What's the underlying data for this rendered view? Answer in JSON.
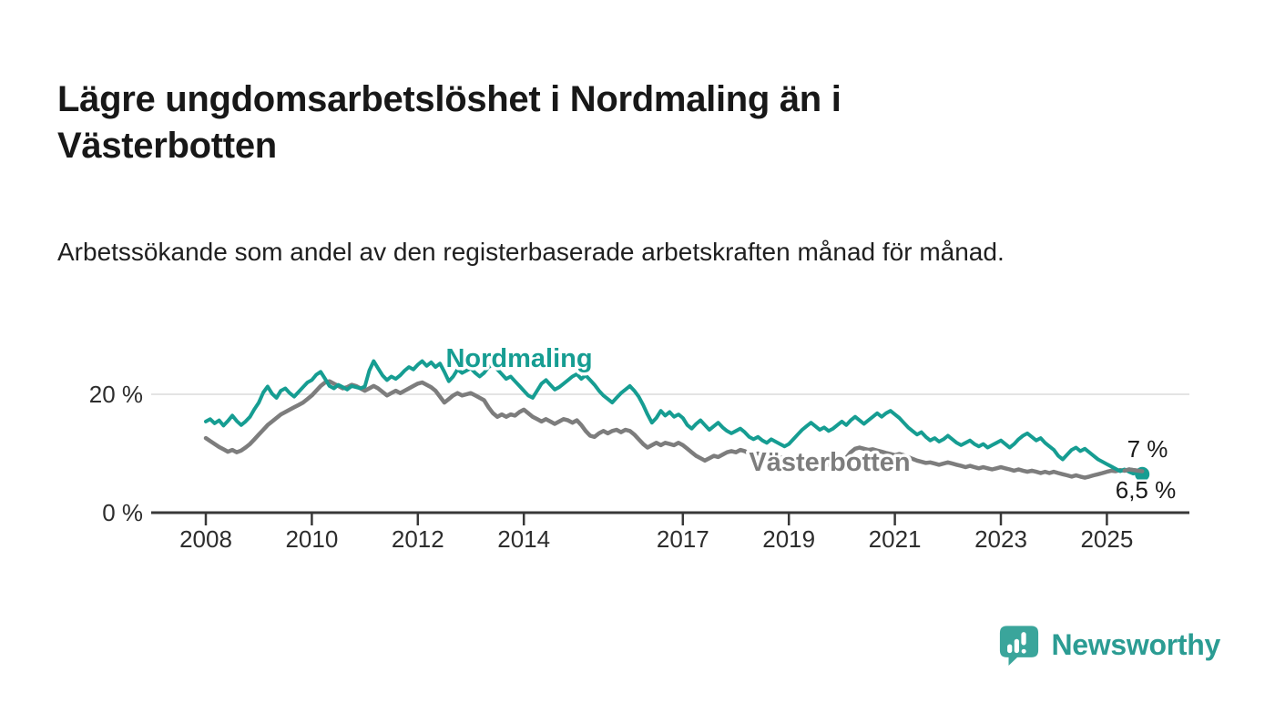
{
  "header": {
    "title": "Lägre ungdomsarbetslöshet i Nordmaling än i Västerbotten",
    "subtitle": "Arbetssökande som andel av den registerbaserade arbetskraften månad för månad."
  },
  "footer": {
    "brand": "Newsworthy",
    "logo_icon": "bar-chart-speech-bubble-icon",
    "brand_color": "#2b9c93"
  },
  "colors": {
    "nordmaling": "#169d92",
    "vasterbotten": "#7d7d7d",
    "axis": "#383838",
    "gridline": "#dcdcdc",
    "tick_text": "#2d2d2d",
    "end_label_text": "#1a1a1a"
  },
  "chart_data": {
    "type": "line",
    "unit": "%",
    "x_start": "2008-01",
    "x_end": "2025-09",
    "points_per_month": 1,
    "grid": "horizontal-20-only",
    "y_ticks": [
      {
        "value": 0,
        "label": "0 %"
      },
      {
        "value": 20,
        "label": "20 %"
      }
    ],
    "x_ticks": [
      {
        "year": 2008,
        "label": "2008"
      },
      {
        "year": 2010,
        "label": "2010"
      },
      {
        "year": 2012,
        "label": "2012"
      },
      {
        "year": 2014,
        "label": "2014"
      },
      {
        "year": 2017,
        "label": "2017"
      },
      {
        "year": 2019,
        "label": "2019"
      },
      {
        "year": 2021,
        "label": "2021"
      },
      {
        "year": 2023,
        "label": "2023"
      },
      {
        "year": 2025,
        "label": "2025"
      }
    ],
    "series": [
      {
        "name": "Nordmaling",
        "color": "#169d92",
        "end_label": "6,5 %",
        "end_value": 6.5,
        "marker_end": true,
        "values": [
          15.4,
          15.8,
          15.1,
          15.6,
          14.7,
          15.5,
          16.4,
          15.5,
          14.8,
          15.4,
          16.2,
          17.5,
          18.6,
          20.3,
          21.3,
          20.1,
          19.4,
          20.6,
          21.0,
          20.2,
          19.6,
          20.4,
          21.2,
          22.0,
          22.4,
          23.3,
          23.8,
          22.6,
          21.4,
          21.0,
          21.6,
          21.2,
          20.8,
          21.4,
          21.2,
          21.0,
          21.3,
          24.0,
          25.6,
          24.4,
          23.2,
          22.4,
          23.0,
          22.6,
          23.2,
          24.0,
          24.6,
          24.2,
          25.0,
          25.6,
          24.8,
          25.4,
          24.6,
          25.2,
          23.8,
          22.2,
          23.0,
          24.2,
          23.6,
          24.0,
          24.4,
          23.6,
          23.0,
          23.6,
          24.6,
          25.0,
          24.2,
          23.4,
          22.6,
          23.0,
          22.2,
          21.4,
          20.6,
          19.8,
          19.4,
          20.6,
          21.8,
          22.4,
          21.6,
          20.8,
          21.2,
          21.8,
          22.4,
          23.0,
          23.4,
          22.6,
          23.2,
          22.4,
          21.6,
          20.6,
          19.8,
          19.2,
          18.6,
          19.4,
          20.2,
          20.8,
          21.4,
          20.6,
          19.6,
          18.2,
          16.6,
          15.2,
          16.0,
          17.2,
          16.4,
          17.0,
          16.2,
          16.6,
          16.0,
          14.8,
          14.2,
          15.0,
          15.6,
          14.8,
          14.0,
          14.6,
          15.2,
          14.4,
          13.8,
          13.4,
          13.8,
          14.2,
          13.6,
          12.8,
          12.4,
          12.8,
          12.2,
          11.8,
          12.4,
          12.0,
          11.6,
          11.2,
          11.6,
          12.4,
          13.2,
          14.0,
          14.6,
          15.2,
          14.6,
          14.0,
          14.4,
          13.8,
          14.2,
          14.8,
          15.4,
          14.8,
          15.6,
          16.2,
          15.6,
          15.0,
          15.6,
          16.2,
          16.8,
          16.2,
          16.8,
          17.2,
          16.6,
          16.0,
          15.2,
          14.4,
          13.8,
          13.2,
          13.6,
          12.8,
          12.2,
          12.6,
          12.0,
          12.4,
          13.0,
          12.4,
          11.8,
          11.4,
          11.8,
          12.2,
          11.6,
          11.2,
          11.6,
          11.0,
          11.4,
          11.8,
          12.2,
          11.6,
          11.0,
          11.6,
          12.4,
          13.0,
          13.4,
          12.8,
          12.2,
          12.6,
          11.8,
          11.2,
          10.6,
          9.6,
          9.0,
          9.8,
          10.6,
          11.0,
          10.4,
          10.8,
          10.2,
          9.6,
          9.0,
          8.6,
          8.2,
          7.8,
          7.4,
          7.0,
          7.3,
          6.9,
          6.6,
          6.8,
          6.5
        ]
      },
      {
        "name": "Västerbotten",
        "color": "#7d7d7d",
        "end_label": "7 %",
        "end_value": 7.0,
        "marker_end": false,
        "values": [
          12.6,
          12.1,
          11.6,
          11.1,
          10.7,
          10.3,
          10.6,
          10.2,
          10.5,
          11.0,
          11.6,
          12.4,
          13.2,
          14.0,
          14.8,
          15.4,
          16.0,
          16.6,
          17.0,
          17.4,
          17.8,
          18.2,
          18.6,
          19.2,
          19.8,
          20.6,
          21.4,
          22.0,
          22.2,
          21.8,
          21.4,
          21.0,
          21.2,
          21.6,
          21.4,
          21.0,
          20.6,
          21.0,
          21.4,
          21.0,
          20.4,
          19.8,
          20.2,
          20.6,
          20.2,
          20.6,
          21.0,
          21.4,
          21.8,
          22.0,
          21.6,
          21.2,
          20.6,
          19.6,
          18.6,
          19.2,
          19.8,
          20.2,
          19.8,
          20.0,
          20.2,
          19.8,
          19.4,
          19.0,
          17.8,
          16.8,
          16.2,
          16.6,
          16.2,
          16.6,
          16.4,
          17.0,
          17.4,
          16.8,
          16.2,
          15.8,
          15.4,
          15.8,
          15.4,
          15.0,
          15.4,
          15.8,
          15.6,
          15.2,
          15.6,
          14.8,
          13.8,
          13.0,
          12.8,
          13.4,
          13.8,
          13.4,
          13.8,
          14.0,
          13.6,
          14.0,
          13.8,
          13.2,
          12.4,
          11.6,
          11.0,
          11.4,
          11.8,
          11.4,
          11.8,
          11.6,
          11.4,
          11.8,
          11.4,
          10.8,
          10.2,
          9.6,
          9.2,
          8.8,
          9.2,
          9.6,
          9.4,
          9.8,
          10.2,
          10.4,
          10.2,
          10.6,
          10.4,
          10.0,
          9.8,
          10.0,
          9.6,
          9.4,
          9.6,
          9.2,
          9.4,
          9.0,
          8.8,
          8.6,
          8.4,
          8.2,
          8.0,
          8.2,
          7.9,
          8.1,
          8.3,
          8.1,
          8.4,
          8.6,
          8.9,
          9.3,
          10.2,
          10.8,
          11.0,
          10.8,
          10.6,
          10.7,
          10.5,
          10.3,
          10.1,
          9.9,
          9.7,
          9.9,
          9.7,
          9.4,
          9.1,
          8.8,
          8.6,
          8.4,
          8.5,
          8.3,
          8.1,
          8.3,
          8.5,
          8.3,
          8.1,
          7.9,
          7.7,
          7.9,
          7.7,
          7.5,
          7.7,
          7.5,
          7.3,
          7.5,
          7.7,
          7.5,
          7.3,
          7.1,
          7.3,
          7.1,
          6.9,
          7.1,
          6.9,
          6.7,
          6.9,
          6.7,
          6.9,
          6.7,
          6.5,
          6.3,
          6.1,
          6.3,
          6.1,
          5.9,
          6.1,
          6.3,
          6.5,
          6.7,
          6.9,
          7.1,
          7.0,
          7.2,
          7.1,
          7.3,
          7.2,
          7.1,
          7.0
        ]
      }
    ]
  }
}
